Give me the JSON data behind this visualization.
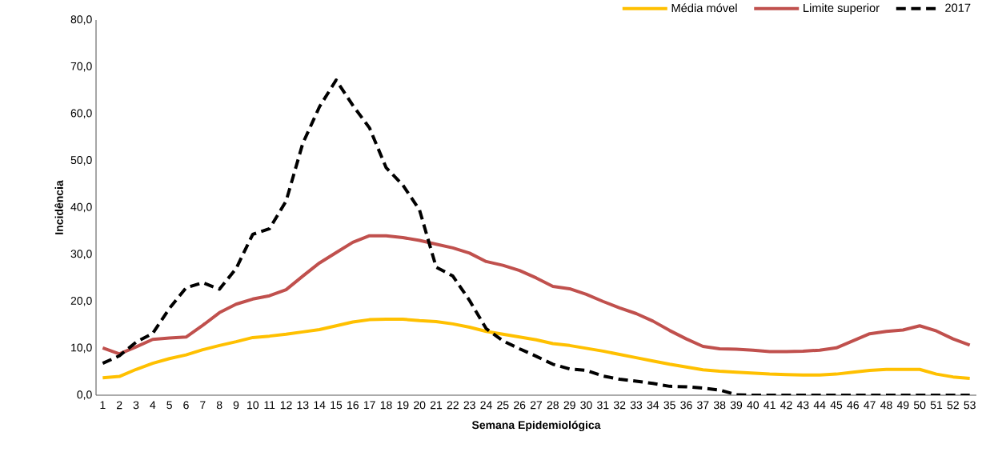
{
  "chart_data": {
    "type": "line",
    "xlabel": "Semana Epidemiológica",
    "ylabel": "Incidência",
    "categories": [
      "1",
      "2",
      "3",
      "4",
      "5",
      "6",
      "7",
      "8",
      "9",
      "10",
      "11",
      "12",
      "13",
      "14",
      "15",
      "16",
      "17",
      "18",
      "19",
      "20",
      "21",
      "22",
      "23",
      "24",
      "25",
      "26",
      "27",
      "28",
      "29",
      "30",
      "31",
      "32",
      "33",
      "34",
      "35",
      "36",
      "37",
      "38",
      "39",
      "40",
      "41",
      "42",
      "43",
      "44",
      "45",
      "46",
      "47",
      "48",
      "49",
      "50",
      "51",
      "52",
      "53"
    ],
    "ylim": [
      0,
      80
    ],
    "yticks": [
      {
        "value": 0,
        "label": "0,0"
      },
      {
        "value": 10,
        "label": "10,0"
      },
      {
        "value": 20,
        "label": "20,0"
      },
      {
        "value": 30,
        "label": "30,0"
      },
      {
        "value": 40,
        "label": "40,0"
      },
      {
        "value": 50,
        "label": "50,0"
      },
      {
        "value": 60,
        "label": "60,0"
      },
      {
        "value": 70,
        "label": "70,0"
      },
      {
        "value": 80,
        "label": "80,0"
      }
    ],
    "legend": "top right",
    "series": [
      {
        "name": "Média móvel",
        "color": "#ffc000",
        "line_style": "solid",
        "values": [
          3.7,
          4.0,
          5.5,
          6.8,
          7.8,
          8.6,
          9.7,
          10.6,
          11.4,
          12.3,
          12.6,
          13.0,
          13.5,
          14.0,
          14.8,
          15.6,
          16.1,
          16.2,
          16.2,
          15.9,
          15.7,
          15.2,
          14.5,
          13.6,
          13.0,
          12.4,
          11.8,
          11.0,
          10.6,
          10.0,
          9.4,
          8.7,
          8.0,
          7.3,
          6.6,
          6.0,
          5.4,
          5.1,
          4.9,
          4.7,
          4.5,
          4.4,
          4.3,
          4.3,
          4.5,
          4.9,
          5.3,
          5.5,
          5.5,
          5.5,
          4.5,
          3.9,
          3.6
        ]
      },
      {
        "name": "Limite superior",
        "color": "#c0504d",
        "line_style": "solid",
        "values": [
          10.1,
          8.8,
          10.3,
          11.9,
          12.2,
          12.4,
          14.9,
          17.6,
          19.4,
          20.5,
          21.2,
          22.5,
          25.4,
          28.2,
          30.4,
          32.6,
          34.0,
          34.0,
          33.6,
          33.0,
          32.2,
          31.4,
          30.3,
          28.5,
          27.7,
          26.6,
          25.0,
          23.2,
          22.7,
          21.5,
          20.0,
          18.6,
          17.4,
          15.8,
          13.8,
          12.0,
          10.4,
          9.9,
          9.8,
          9.6,
          9.3,
          9.3,
          9.4,
          9.6,
          10.1,
          11.6,
          13.1,
          13.6,
          13.9,
          14.8,
          13.7,
          12.0,
          10.7
        ]
      },
      {
        "name": "2017",
        "color": "#000000",
        "line_style": "dashed",
        "values": [
          6.8,
          8.4,
          11.3,
          13.2,
          18.5,
          22.9,
          24.0,
          22.6,
          27.0,
          34.3,
          35.5,
          41.4,
          53.7,
          61.5,
          67.2,
          61.8,
          57.0,
          48.5,
          44.8,
          39.5,
          27.3,
          25.4,
          20.2,
          14.2,
          11.6,
          9.9,
          8.3,
          6.6,
          5.6,
          5.3,
          4.1,
          3.4,
          3.0,
          2.5,
          1.9,
          1.8,
          1.5,
          1.1,
          0.1,
          0,
          0,
          0,
          0,
          0,
          0,
          0,
          0,
          0,
          0,
          0,
          0,
          0,
          0
        ]
      }
    ]
  }
}
